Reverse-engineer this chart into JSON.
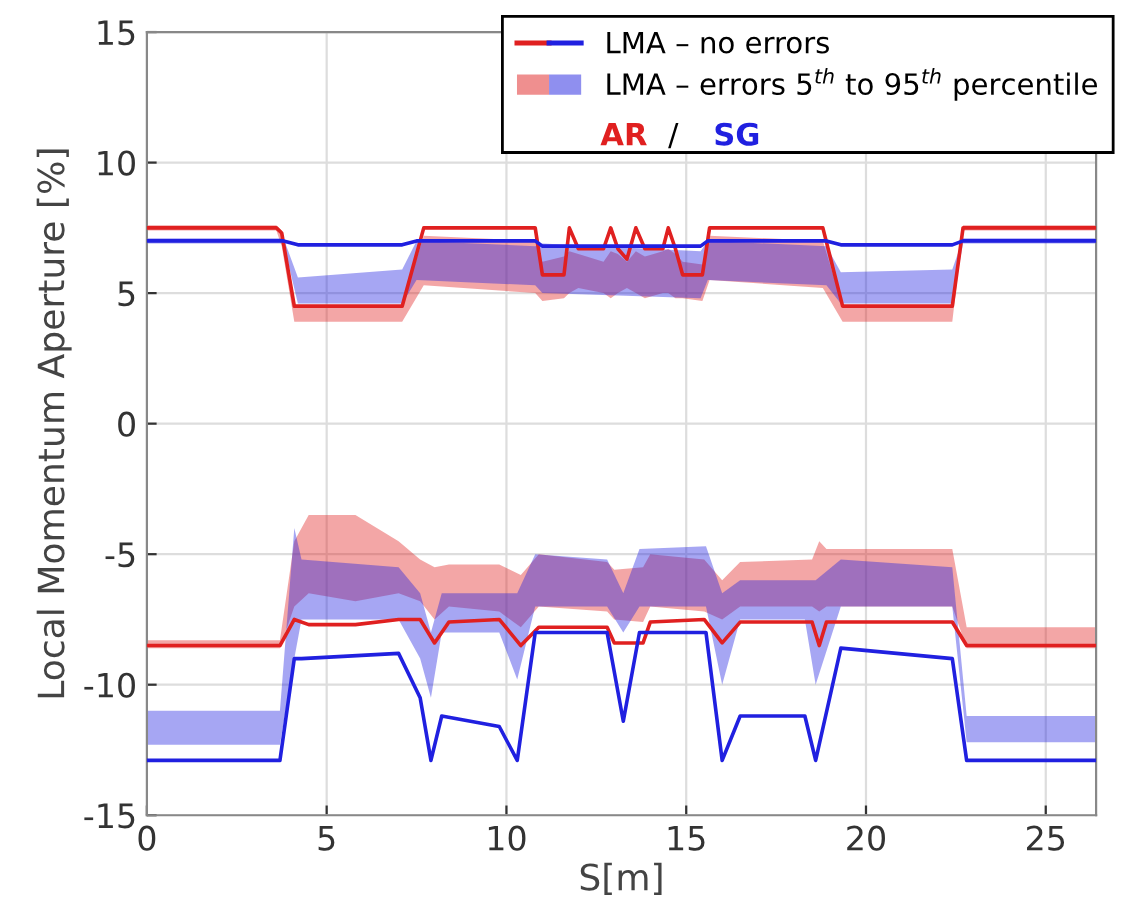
{
  "chart_data": {
    "type": "line",
    "xlabel": "S[m]",
    "ylabel": "Local Momentum Aperture [%]",
    "xlim": [
      0,
      26.4
    ],
    "xticks": [
      0,
      5,
      10,
      15,
      20,
      25
    ],
    "ylim": [
      -15,
      15
    ],
    "yticks": [
      -15,
      -10,
      -5,
      0,
      5,
      10,
      15
    ],
    "grid": true,
    "legend": "top right",
    "line_style": "solid",
    "annotations": [
      "LMA – no errors",
      "LMA – errors 5$^{th}$ to 95$^{th}$ percentile",
      "/"
    ],
    "series": [
      {
        "name": "AR",
        "color": "#e02020",
        "x": [
          0,
          3.6,
          3.75,
          4.1,
          7.1,
          7.7,
          10.8,
          11.0,
          11.6,
          11.75,
          12.0,
          12.7,
          12.9,
          13.1,
          13.35,
          13.6,
          13.85,
          14.35,
          14.5,
          14.7,
          14.9,
          15.45,
          15.65,
          18.8,
          19.35,
          22.4,
          22.7,
          26.4
        ],
        "values": [
          7.5,
          7.5,
          7.3,
          4.5,
          4.5,
          7.5,
          7.5,
          5.7,
          5.7,
          7.5,
          6.7,
          6.7,
          7.5,
          6.7,
          6.3,
          7.5,
          6.7,
          6.7,
          7.5,
          6.7,
          5.7,
          5.7,
          7.5,
          7.5,
          4.5,
          4.5,
          7.5,
          7.5
        ],
        "lower": [
          7.4,
          7.4,
          6.8,
          3.9,
          3.9,
          5.3,
          5.0,
          4.7,
          4.8,
          5.0,
          5.2,
          5.0,
          4.8,
          5.0,
          5.2,
          5.0,
          4.8,
          5.0,
          5.0,
          4.8,
          4.8,
          4.7,
          5.5,
          5.2,
          3.9,
          3.9,
          7.4,
          7.4
        ],
        "upper": [
          7.6,
          7.6,
          7.4,
          4.5,
          4.5,
          7.2,
          7.0,
          6.2,
          6.4,
          6.6,
          6.5,
          6.2,
          6.6,
          6.5,
          6.2,
          6.6,
          6.4,
          6.6,
          6.7,
          6.5,
          6.2,
          6.1,
          7.2,
          7.0,
          4.5,
          4.5,
          7.6,
          7.6
        ]
      },
      {
        "name": "SG",
        "color": "#2020e0",
        "x": [
          0,
          3.8,
          4.2,
          7.1,
          7.5,
          10.8,
          11.0,
          15.4,
          15.6,
          18.9,
          19.3,
          22.4,
          22.7,
          26.4
        ],
        "values": [
          7.0,
          7.0,
          6.85,
          6.85,
          7.0,
          7.0,
          6.8,
          6.8,
          7.0,
          7.0,
          6.85,
          6.85,
          7.0,
          7.0
        ],
        "lower": [
          6.9,
          6.9,
          4.6,
          4.6,
          5.5,
          5.3,
          5.0,
          4.8,
          5.5,
          5.3,
          4.6,
          4.6,
          6.9,
          6.9
        ],
        "upper": [
          7.1,
          7.1,
          5.6,
          5.9,
          7.0,
          6.8,
          6.9,
          6.6,
          7.0,
          6.8,
          5.8,
          5.9,
          7.1,
          7.1
        ]
      },
      {
        "color": "#e02020",
        "x": [
          0,
          3.7,
          4.1,
          4.5,
          5.8,
          7.0,
          7.6,
          8.0,
          8.4,
          9.8,
          10.4,
          10.9,
          12.8,
          13.0,
          13.8,
          14.0,
          15.5,
          16.0,
          16.5,
          18.5,
          18.7,
          18.9,
          22.4,
          22.8,
          26.4
        ],
        "values": [
          -8.5,
          -8.5,
          -7.5,
          -7.7,
          -7.7,
          -7.5,
          -7.5,
          -8.4,
          -7.6,
          -7.5,
          -8.5,
          -7.8,
          -7.8,
          -8.4,
          -8.4,
          -7.6,
          -7.5,
          -8.4,
          -7.6,
          -7.6,
          -8.5,
          -7.6,
          -7.6,
          -8.5,
          -8.5
        ],
        "lower": [
          -8.6,
          -8.6,
          -7.0,
          -6.5,
          -6.8,
          -6.5,
          -6.8,
          -7.5,
          -7.0,
          -7.2,
          -7.8,
          -7.0,
          -7.2,
          -7.5,
          -7.6,
          -7.0,
          -7.2,
          -7.5,
          -7.0,
          -7.0,
          -7.2,
          -7.0,
          -7.0,
          -8.6,
          -8.6
        ],
        "upper": [
          -8.3,
          -8.3,
          -4.5,
          -3.5,
          -3.5,
          -4.5,
          -5.2,
          -5.5,
          -5.4,
          -5.4,
          -5.8,
          -5.0,
          -5.3,
          -5.6,
          -5.5,
          -5.0,
          -5.2,
          -6.0,
          -5.3,
          -5.2,
          -4.5,
          -4.8,
          -4.8,
          -7.8,
          -7.8
        ]
      },
      {
        "color": "#2020e0",
        "x": [
          0,
          3.7,
          4.1,
          4.3,
          7.0,
          7.6,
          7.9,
          8.2,
          9.8,
          10.3,
          10.8,
          12.8,
          13.25,
          13.7,
          15.55,
          16.0,
          16.5,
          18.3,
          18.6,
          19.3,
          22.4,
          22.8,
          26.4
        ],
        "values": [
          -12.9,
          -12.9,
          -9.0,
          -9.0,
          -8.8,
          -10.5,
          -12.9,
          -11.2,
          -11.6,
          -12.9,
          -8.0,
          -8.0,
          -11.4,
          -8.0,
          -8.0,
          -12.9,
          -11.2,
          -11.2,
          -12.9,
          -8.6,
          -9.0,
          -12.9,
          -12.9
        ],
        "lower": [
          -12.3,
          -12.3,
          -9.0,
          -7.5,
          -7.5,
          -9.0,
          -10.5,
          -8.0,
          -8.0,
          -9.8,
          -7.0,
          -7.0,
          -8.0,
          -7.0,
          -7.0,
          -10.0,
          -7.5,
          -7.5,
          -10.0,
          -7.0,
          -7.0,
          -12.2,
          -12.2
        ],
        "upper": [
          -11.0,
          -11.0,
          -4.0,
          -5.2,
          -5.5,
          -6.5,
          -8.0,
          -6.5,
          -6.5,
          -6.5,
          -5.0,
          -5.2,
          -6.5,
          -4.8,
          -4.7,
          -6.5,
          -6.0,
          -6.0,
          -6.0,
          -5.2,
          -5.5,
          -11.2,
          -11.2
        ]
      }
    ]
  }
}
